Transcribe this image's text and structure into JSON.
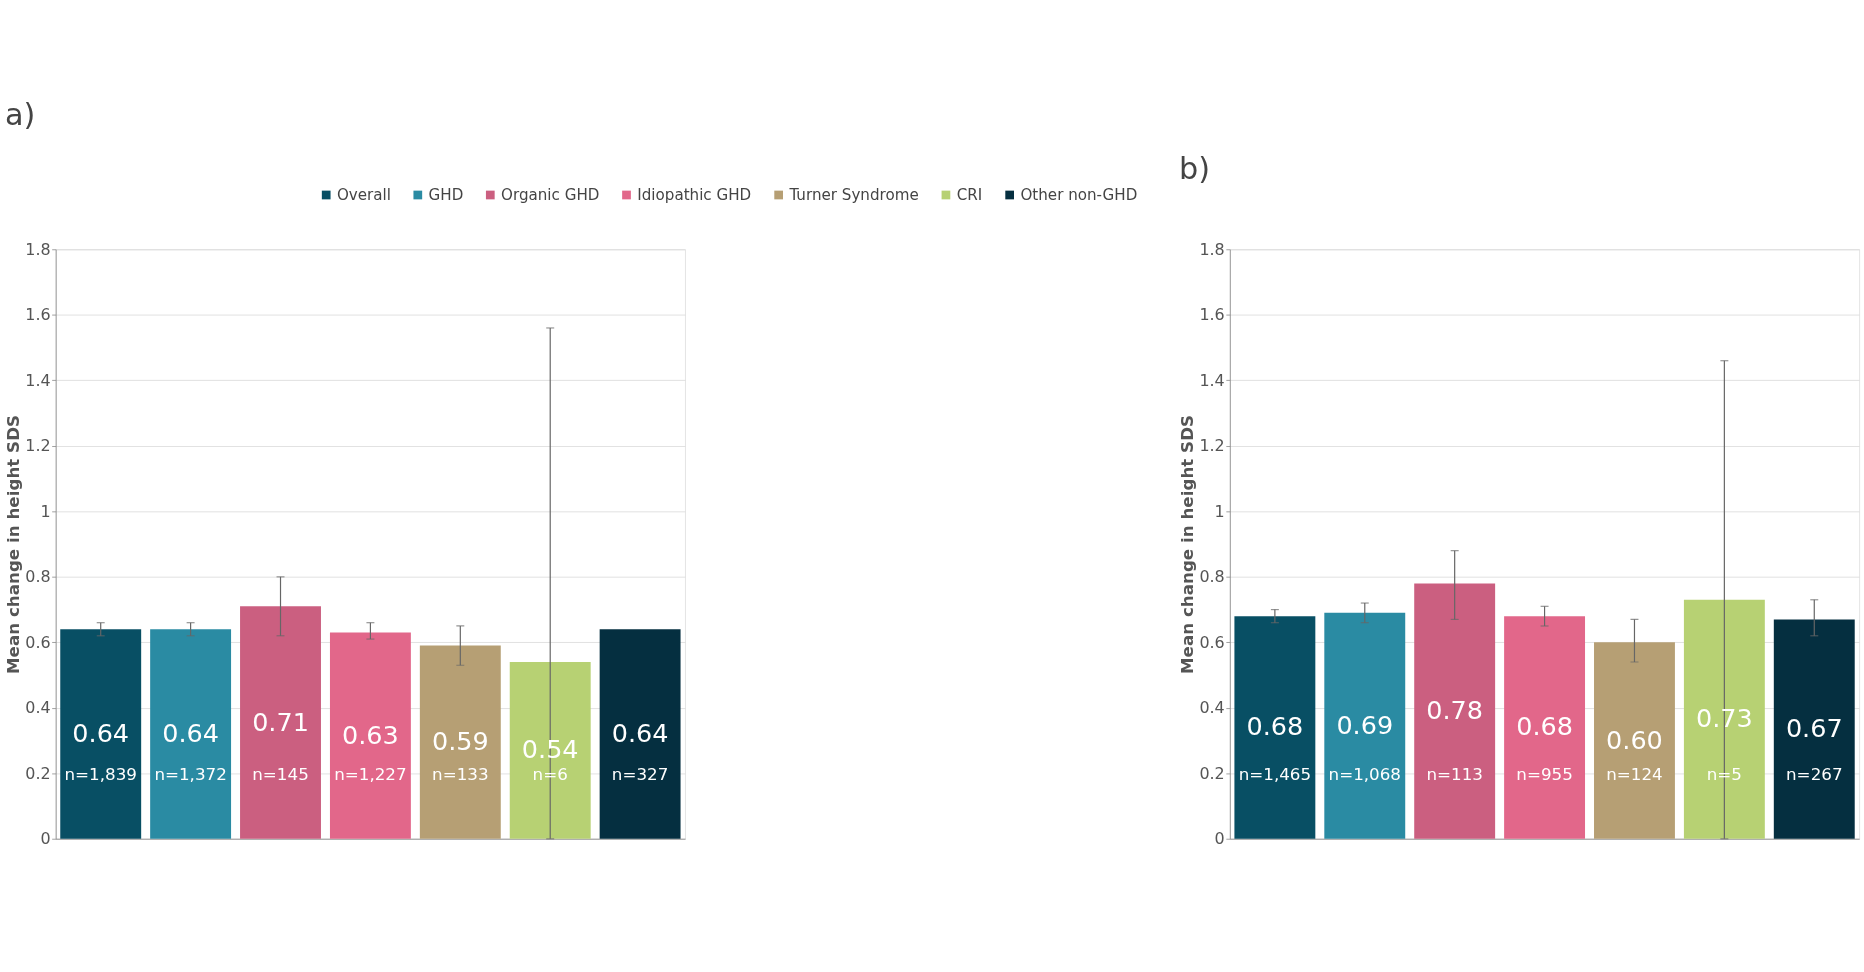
{
  "chart_data": [
    {
      "type": "bar",
      "title": "a)",
      "ylabel": "Mean change in height SDS",
      "categories": [
        null,
        null,
        null,
        null,
        null,
        null,
        null
      ],
      "ylim": [
        0,
        1.8
      ],
      "yticks": [
        0,
        0.2,
        0.4,
        0.6,
        0.8,
        1,
        1.2,
        1.4,
        1.6,
        1.8
      ],
      "grid": "y",
      "legend": "top",
      "tick_labels": "y",
      "series": [
        {
          "name": "Overall",
          "color": "#084f64",
          "values": [
            0.64,
            null,
            null,
            null,
            null,
            null,
            null
          ],
          "value_labels": [
            "0.64",
            null,
            null,
            null,
            null,
            null,
            null
          ],
          "errors": [
            [
              0.62,
              0.66
            ],
            null,
            null,
            null,
            null,
            null,
            null
          ]
        },
        {
          "name": "GHD",
          "color": "#2a8ba3",
          "values": [
            null,
            0.64,
            null,
            null,
            null,
            null,
            null
          ],
          "value_labels": [
            null,
            "0.64",
            null,
            null,
            null,
            null,
            null
          ],
          "errors": [
            null,
            [
              0.62,
              0.66
            ],
            null,
            null,
            null,
            null,
            null
          ]
        },
        {
          "name": "Organic GHD",
          "color": "#cb5f80",
          "values": [
            null,
            null,
            0.71,
            null,
            null,
            null,
            null
          ],
          "value_labels": [
            null,
            null,
            "0.71",
            null,
            null,
            null,
            null
          ],
          "errors": [
            null,
            null,
            [
              0.62,
              0.8
            ],
            null,
            null,
            null,
            null
          ]
        },
        {
          "name": "Idiopathic GHD",
          "color": "#e2678a",
          "values": [
            null,
            null,
            null,
            0.63,
            null,
            null,
            null
          ],
          "value_labels": [
            null,
            null,
            null,
            "0.63",
            null,
            null,
            null
          ],
          "errors": [
            null,
            null,
            null,
            [
              0.61,
              0.66
            ],
            null,
            null,
            null
          ]
        },
        {
          "name": "Turner Syndrome",
          "color": "#b69f74",
          "values": [
            null,
            null,
            null,
            null,
            0.59,
            null,
            null
          ],
          "value_labels": [
            null,
            null,
            null,
            null,
            "0.59",
            null,
            null
          ],
          "errors": [
            null,
            null,
            null,
            null,
            [
              0.53,
              0.65
            ],
            null,
            null
          ]
        },
        {
          "name": "CRI",
          "color": "#b7d173",
          "values": [
            null,
            null,
            null,
            null,
            null,
            0.54,
            null
          ],
          "value_labels": [
            null,
            null,
            null,
            null,
            null,
            "0.54",
            null
          ],
          "errors": [
            null,
            null,
            null,
            null,
            null,
            [
              0,
              1.56
            ],
            null
          ]
        },
        {
          "name": "Other non-GHD",
          "color": "#052f40",
          "values": [
            null,
            null,
            null,
            null,
            null,
            null,
            0.64
          ],
          "value_labels": [
            null,
            null,
            null,
            null,
            null,
            null,
            "0.64"
          ],
          "errors": [
            null,
            null,
            null,
            null,
            null,
            null,
            null
          ]
        }
      ],
      "annotations": [
        "n=1,839",
        "n=1,372",
        "n=145",
        "n=1,227",
        "n=133",
        "n=6",
        "n=327"
      ]
    },
    {
      "type": "bar",
      "title": "b)",
      "ylabel": "Mean change in height SDS",
      "categories": [
        null,
        null,
        null,
        null,
        null,
        null,
        null
      ],
      "ylim": [
        0,
        1.8
      ],
      "yticks": [
        0,
        0.2,
        0.4,
        0.6,
        0.8,
        1,
        1.2,
        1.4,
        1.6,
        1.8
      ],
      "grid": "y",
      "tick_labels": "y",
      "values": [
        0.68,
        0.69,
        0.78,
        0.68,
        0.6,
        0.73,
        0.67
      ],
      "colors": [
        "#084f64",
        "#2a8ba3",
        "#cb5f80",
        "#e2678a",
        "#b69f74",
        "#b7d173",
        "#052f40"
      ],
      "value_labels": [
        "0.68",
        "0.69",
        "0.78",
        "0.68",
        "0.60",
        "0.73",
        "0.67"
      ],
      "errors": [
        [
          0.66,
          0.7
        ],
        [
          0.66,
          0.72
        ],
        [
          0.67,
          0.88
        ],
        [
          0.65,
          0.71
        ],
        [
          0.54,
          0.67
        ],
        [
          0,
          1.46
        ],
        [
          0.62,
          0.73
        ]
      ],
      "annotations": [
        "n=1,465",
        "n=1,068",
        "n=113",
        "n=955",
        "n=124",
        "n=5",
        "n=267"
      ]
    }
  ]
}
